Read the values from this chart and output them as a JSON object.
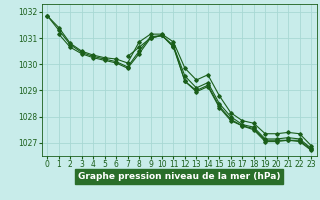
{
  "title": "Graphe pression niveau de la mer (hPa)",
  "bg_color": "#c8ecea",
  "plot_bg_color": "#c8ecea",
  "label_bg_color": "#2a6e2a",
  "label_text_color": "#ffffff",
  "line_color": "#1a5e1a",
  "grid_color": "#a8d8d4",
  "xlim": [
    -0.5,
    23.5
  ],
  "ylim": [
    1026.5,
    1032.3
  ],
  "yticks": [
    1027,
    1028,
    1029,
    1030,
    1031,
    1032
  ],
  "xticks": [
    0,
    1,
    2,
    3,
    4,
    5,
    6,
    7,
    8,
    9,
    10,
    11,
    12,
    13,
    14,
    15,
    16,
    17,
    18,
    19,
    20,
    21,
    22,
    23
  ],
  "xlabel_fontsize": 6.5,
  "tick_fontsize": 5.5,
  "series": [
    {
      "x": [
        0,
        1,
        2,
        3,
        4,
        5,
        6,
        7,
        8,
        9,
        10,
        11,
        12,
        13,
        14,
        15,
        16,
        17,
        18,
        19,
        20,
        21,
        22,
        23
      ],
      "y": [
        1031.85,
        1031.4,
        1030.8,
        1030.5,
        1030.35,
        1030.25,
        1030.2,
        1030.05,
        1030.85,
        1031.15,
        1031.15,
        1030.85,
        1029.85,
        1029.4,
        1029.6,
        1028.8,
        1028.15,
        1027.85,
        1027.75,
        1027.35,
        1027.35,
        1027.4,
        1027.35,
        1026.9
      ]
    },
    {
      "x": [
        0,
        1,
        2,
        3,
        4,
        5,
        6,
        7,
        8,
        9,
        10,
        11,
        12,
        13,
        14,
        15,
        16,
        17,
        18,
        19,
        20,
        21,
        22,
        23
      ],
      "y": [
        1031.85,
        1031.3,
        1030.75,
        1030.45,
        1030.3,
        1030.2,
        1030.1,
        1029.9,
        1030.5,
        1031.05,
        1031.1,
        1030.7,
        1029.55,
        1029.1,
        1029.3,
        1028.5,
        1028.0,
        1027.7,
        1027.6,
        1027.15,
        1027.15,
        1027.2,
        1027.15,
        1026.8
      ]
    },
    {
      "x": [
        1,
        2,
        3,
        4,
        5,
        6,
        7,
        8,
        9,
        10,
        11,
        12,
        13,
        14,
        15,
        16,
        17,
        18,
        19,
        20,
        21,
        22,
        23
      ],
      "y": [
        1031.15,
        1030.65,
        1030.4,
        1030.25,
        1030.15,
        1030.05,
        1029.85,
        1030.4,
        1031.0,
        1031.1,
        1030.65,
        1029.35,
        1029.0,
        1029.2,
        1028.4,
        1027.9,
        1027.65,
        1027.55,
        1027.1,
        1027.1,
        1027.1,
        1027.1,
        1026.75
      ]
    },
    {
      "x": [
        7,
        8,
        9,
        10,
        11,
        12,
        13,
        14,
        15,
        16,
        17,
        18,
        19,
        20,
        21,
        22,
        23
      ],
      "y": [
        1030.3,
        1030.65,
        1031.0,
        1031.1,
        1030.7,
        1029.35,
        1028.95,
        1029.15,
        1028.35,
        1027.85,
        1027.65,
        1027.5,
        1027.05,
        1027.05,
        1027.1,
        1027.05,
        1026.72
      ]
    }
  ]
}
